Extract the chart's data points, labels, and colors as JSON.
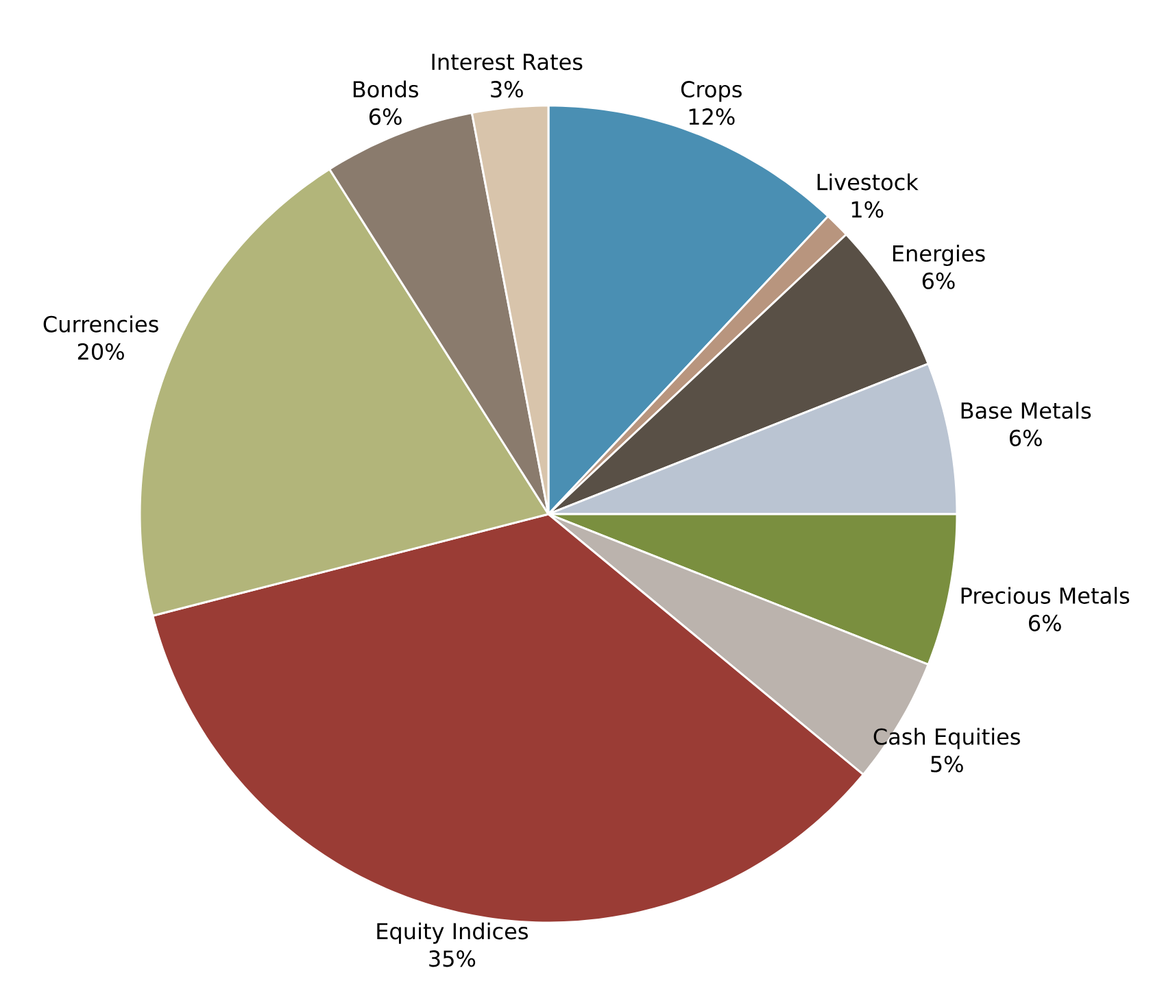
{
  "chart_data": {
    "type": "pie",
    "categories": [
      "Crops",
      "Livestock",
      "Energies",
      "Base Metals",
      "Precious Metals",
      "Cash Equities",
      "Equity Indices",
      "Currencies",
      "Bonds",
      "Interest Rates"
    ],
    "values": [
      12,
      1,
      6,
      6,
      6,
      5,
      35,
      20,
      6,
      3
    ],
    "value_labels": [
      "12%",
      "1%",
      "6%",
      "6%",
      "6%",
      "5%",
      "35%",
      "20%",
      "6%",
      "3%"
    ],
    "colors": [
      "#4a8fb3",
      "#b8957e",
      "#595046",
      "#bac4d2",
      "#7a8f3f",
      "#bbb3ad",
      "#9a3c35",
      "#b2b57a",
      "#8a7b6d",
      "#d8c4ab"
    ]
  }
}
